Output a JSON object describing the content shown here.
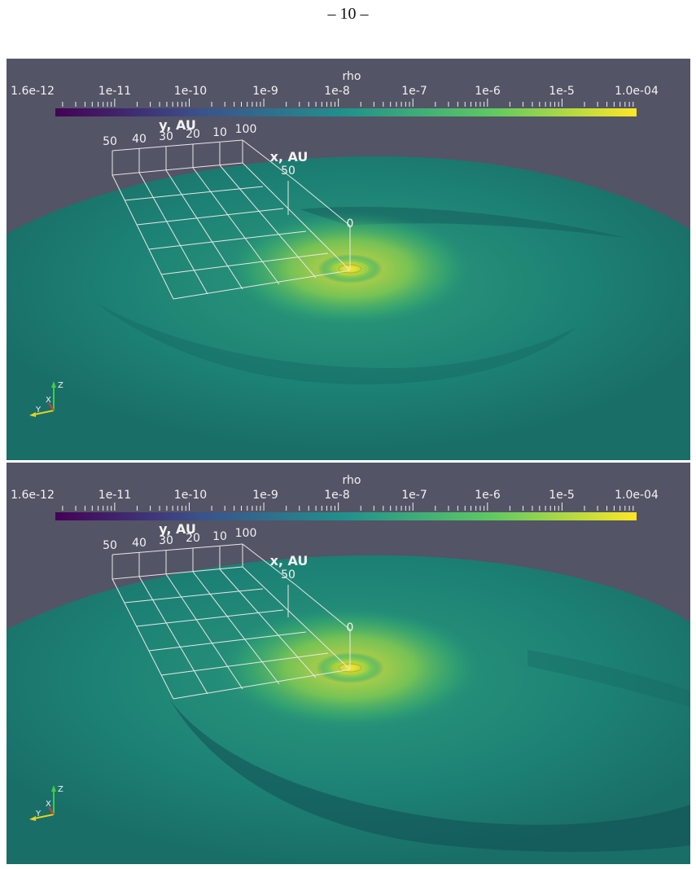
{
  "page": {
    "number_label": "– 10 –"
  },
  "panels": [
    {
      "id": "top",
      "colorbar": {
        "title": "rho",
        "tick_labels": [
          "1.6e-12",
          "1e-11",
          "1e-10",
          "1e-9",
          "1e-8",
          "1e-7",
          "1e-6",
          "1e-5",
          "1.0e-04"
        ],
        "colormap": [
          "#440154",
          "#3b528b",
          "#21918c",
          "#5ec962",
          "#fde725"
        ]
      },
      "axes": {
        "y_title": "y, AU",
        "y_ticks": [
          "50",
          "40",
          "30",
          "20",
          "10",
          "100"
        ],
        "x_title": "x, AU",
        "x_ticks": [
          "50",
          "0"
        ]
      },
      "orientation_axes": {
        "z": "Z",
        "x": "X",
        "y": "Y"
      }
    },
    {
      "id": "bottom",
      "colorbar": {
        "title": "rho",
        "tick_labels": [
          "1.6e-12",
          "1e-11",
          "1e-10",
          "1e-9",
          "1e-8",
          "1e-7",
          "1e-6",
          "1e-5",
          "1.0e-04"
        ],
        "colormap": [
          "#440154",
          "#3b528b",
          "#21918c",
          "#5ec962",
          "#fde725"
        ]
      },
      "axes": {
        "y_title": "y, AU",
        "y_ticks": [
          "50",
          "40",
          "30",
          "20",
          "10",
          "100"
        ],
        "x_title": "x, AU",
        "x_ticks": [
          "50",
          "0"
        ]
      },
      "orientation_axes": {
        "z": "Z",
        "x": "X",
        "y": "Y"
      }
    }
  ],
  "colors": {
    "background": "#535466",
    "disk": "#1f8577",
    "disk_bright": "#4fbf6a",
    "peak": "#fde725",
    "grid": "#e8e8e8"
  }
}
